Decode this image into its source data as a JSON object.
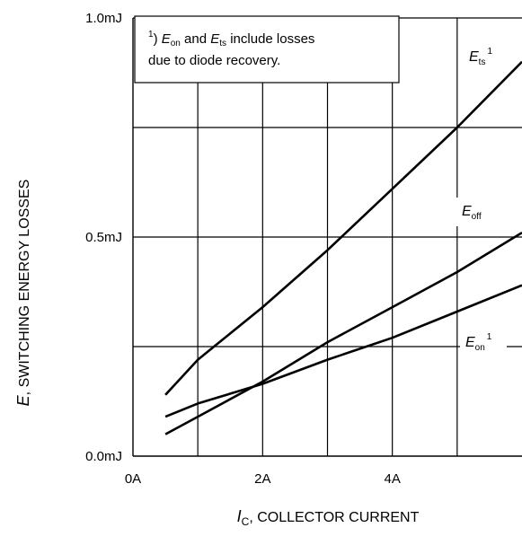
{
  "chart_data": {
    "type": "line",
    "xlim": [
      0,
      6
    ],
    "ylim": [
      0,
      1.0
    ],
    "grid": true,
    "x_ticks": [
      {
        "value": 0,
        "label": "0A"
      },
      {
        "value": 2,
        "label": "2A"
      },
      {
        "value": 4,
        "label": "4A"
      }
    ],
    "y_ticks": [
      {
        "value": 0.0,
        "label": "0.0mJ"
      },
      {
        "value": 0.5,
        "label": "0.5mJ"
      },
      {
        "value": 1.0,
        "label": "1.0mJ"
      }
    ],
    "xlabel": {
      "symbol": "I",
      "sub": "C",
      "rest": ", COLLECTOR CURRENT"
    },
    "ylabel": {
      "symbol": "E",
      "rest": ", SWITCHING ENERGY LOSSES"
    },
    "annotation": {
      "sup": "1",
      "line1_pre": ") ",
      "e1": "E",
      "e1_sub": "on",
      "mid": " and ",
      "e2": "E",
      "e2_sub": "ts",
      "line1_post": " include losses",
      "line2": "due to diode recovery."
    },
    "series": [
      {
        "name": "E_ts",
        "symbol": "E",
        "sub": "ts",
        "sup": "1",
        "x": [
          0.5,
          1.0,
          2.0,
          3.0,
          4.0,
          5.0,
          6.0
        ],
        "y": [
          0.14,
          0.22,
          0.34,
          0.47,
          0.61,
          0.75,
          0.9
        ]
      },
      {
        "name": "E_off",
        "symbol": "E",
        "sub": "off",
        "sup": "",
        "x": [
          0.5,
          1.0,
          2.0,
          3.0,
          4.0,
          5.0,
          6.0
        ],
        "y": [
          0.05,
          0.09,
          0.17,
          0.26,
          0.34,
          0.42,
          0.51
        ]
      },
      {
        "name": "E_on",
        "symbol": "E",
        "sub": "on",
        "sup": "1",
        "x": [
          0.5,
          1.0,
          2.0,
          3.0,
          4.0,
          5.0,
          6.0
        ],
        "y": [
          0.09,
          0.12,
          0.165,
          0.22,
          0.27,
          0.33,
          0.39
        ]
      }
    ]
  }
}
